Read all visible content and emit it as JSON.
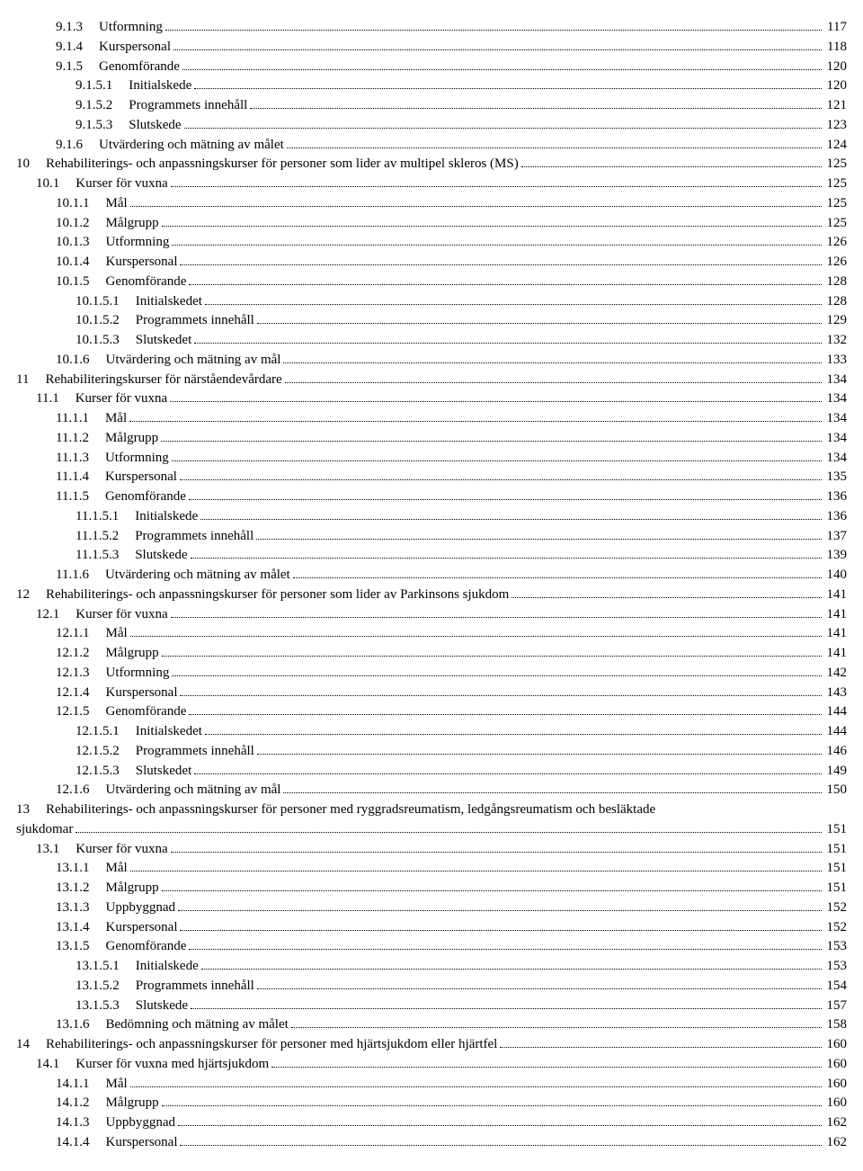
{
  "toc": [
    {
      "num": "9.1.3",
      "title": "Utformning",
      "page": "117",
      "level": 2
    },
    {
      "num": "9.1.4",
      "title": "Kurspersonal",
      "page": "118",
      "level": 2
    },
    {
      "num": "9.1.5",
      "title": "Genomförande",
      "page": "120",
      "level": 2
    },
    {
      "num": "9.1.5.1",
      "title": "Initialskede",
      "page": "120",
      "level": 3
    },
    {
      "num": "9.1.5.2",
      "title": "Programmets innehåll",
      "page": "121",
      "level": 3
    },
    {
      "num": "9.1.5.3",
      "title": "Slutskede",
      "page": "123",
      "level": 3
    },
    {
      "num": "9.1.6",
      "title": "Utvärdering och mätning av målet",
      "page": "124",
      "level": 2
    },
    {
      "num": "10",
      "title": "Rehabiliterings- och anpassningskurser för personer som lider av multipel skleros (MS)",
      "page": "125",
      "level": 0
    },
    {
      "num": "10.1",
      "title": "Kurser för vuxna",
      "page": "125",
      "level": 1
    },
    {
      "num": "10.1.1",
      "title": "Mål",
      "page": "125",
      "level": 2
    },
    {
      "num": "10.1.2",
      "title": "Målgrupp",
      "page": "125",
      "level": 2
    },
    {
      "num": "10.1.3",
      "title": "Utformning",
      "page": "126",
      "level": 2
    },
    {
      "num": "10.1.4",
      "title": "Kurspersonal",
      "page": "126",
      "level": 2
    },
    {
      "num": "10.1.5",
      "title": "Genomförande",
      "page": "128",
      "level": 2
    },
    {
      "num": "10.1.5.1",
      "title": "Initialskedet",
      "page": "128",
      "level": 3
    },
    {
      "num": "10.1.5.2",
      "title": "Programmets innehåll",
      "page": "129",
      "level": 3
    },
    {
      "num": "10.1.5.3",
      "title": "Slutskedet",
      "page": "132",
      "level": 3
    },
    {
      "num": "10.1.6",
      "title": "Utvärdering och mätning av mål",
      "page": "133",
      "level": 2
    },
    {
      "num": "11",
      "title": "Rehabiliteringskurser för närståendevårdare",
      "page": "134",
      "level": 0
    },
    {
      "num": "11.1",
      "title": "Kurser för vuxna",
      "page": "134",
      "level": 1
    },
    {
      "num": "11.1.1",
      "title": "Mål",
      "page": "134",
      "level": 2
    },
    {
      "num": "11.1.2",
      "title": "Målgrupp",
      "page": "134",
      "level": 2
    },
    {
      "num": "11.1.3",
      "title": "Utformning",
      "page": "134",
      "level": 2
    },
    {
      "num": "11.1.4",
      "title": "Kurspersonal",
      "page": "135",
      "level": 2
    },
    {
      "num": "11.1.5",
      "title": "Genomförande",
      "page": "136",
      "level": 2
    },
    {
      "num": "11.1.5.1",
      "title": "Initialskede",
      "page": "136",
      "level": 3
    },
    {
      "num": "11.1.5.2",
      "title": "Programmets innehåll",
      "page": "137",
      "level": 3
    },
    {
      "num": "11.1.5.3",
      "title": "Slutskede",
      "page": "139",
      "level": 3
    },
    {
      "num": "11.1.6",
      "title": "Utvärdering och mätning av målet",
      "page": "140",
      "level": 2
    },
    {
      "num": "12",
      "title": "Rehabiliterings- och anpassningskurser för personer som lider av Parkinsons sjukdom",
      "page": "141",
      "level": 0
    },
    {
      "num": "12.1",
      "title": "Kurser för vuxna",
      "page": "141",
      "level": 1
    },
    {
      "num": "12.1.1",
      "title": "Mål",
      "page": "141",
      "level": 2
    },
    {
      "num": "12.1.2",
      "title": "Målgrupp",
      "page": "141",
      "level": 2
    },
    {
      "num": "12.1.3",
      "title": "Utformning",
      "page": "142",
      "level": 2
    },
    {
      "num": "12.1.4",
      "title": "Kurspersonal",
      "page": "143",
      "level": 2
    },
    {
      "num": "12.1.5",
      "title": "Genomförande",
      "page": "144",
      "level": 2
    },
    {
      "num": "12.1.5.1",
      "title": "Initialskedet",
      "page": "144",
      "level": 3
    },
    {
      "num": "12.1.5.2",
      "title": "Programmets innehåll",
      "page": "146",
      "level": 3
    },
    {
      "num": "12.1.5.3",
      "title": "Slutskedet",
      "page": "149",
      "level": 3
    },
    {
      "num": "12.1.6",
      "title": "Utvärdering och mätning av mål",
      "page": "150",
      "level": 2
    },
    {
      "num": "13",
      "title": "Rehabiliterings- och anpassningskurser för personer med ryggradsreumatism, ledgångsreumatism och besläktade sjukdomar",
      "page": "151",
      "level": 0,
      "wrap": true
    },
    {
      "num": "13.1",
      "title": "Kurser för vuxna",
      "page": "151",
      "level": 1
    },
    {
      "num": "13.1.1",
      "title": "Mål",
      "page": "151",
      "level": 2
    },
    {
      "num": "13.1.2",
      "title": "Målgrupp",
      "page": "151",
      "level": 2
    },
    {
      "num": "13.1.3",
      "title": "Uppbyggnad",
      "page": "152",
      "level": 2
    },
    {
      "num": "13.1.4",
      "title": "Kurspersonal",
      "page": "152",
      "level": 2
    },
    {
      "num": "13.1.5",
      "title": "Genomförande",
      "page": "153",
      "level": 2
    },
    {
      "num": "13.1.5.1",
      "title": "Initialskede",
      "page": "153",
      "level": 3
    },
    {
      "num": "13.1.5.2",
      "title": "Programmets innehåll",
      "page": "154",
      "level": 3
    },
    {
      "num": "13.1.5.3",
      "title": "Slutskede",
      "page": "157",
      "level": 3
    },
    {
      "num": "13.1.6",
      "title": "Bedömning och mätning av målet",
      "page": "158",
      "level": 2
    },
    {
      "num": "14",
      "title": "Rehabiliterings- och anpassningskurser för personer med hjärtsjukdom eller hjärtfel",
      "page": "160",
      "level": 0
    },
    {
      "num": "14.1",
      "title": "Kurser för vuxna med hjärtsjukdom",
      "page": "160",
      "level": 1
    },
    {
      "num": "14.1.1",
      "title": "Mål",
      "page": "160",
      "level": 2
    },
    {
      "num": "14.1.2",
      "title": "Målgrupp",
      "page": "160",
      "level": 2
    },
    {
      "num": "14.1.3",
      "title": "Uppbyggnad",
      "page": "162",
      "level": 2
    },
    {
      "num": "14.1.4",
      "title": "Kurspersonal",
      "page": "162",
      "level": 2
    }
  ]
}
